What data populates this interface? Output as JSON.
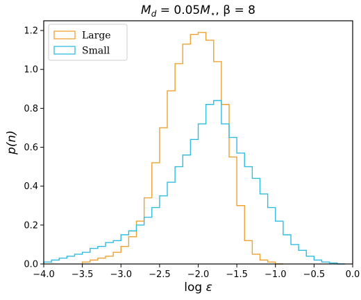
{
  "chart_data": {
    "type": "histogram-step",
    "title": "M_d = 0.05M_⋆, β = 8",
    "title_parts": {
      "m": "M",
      "d": "d",
      "mid": " = 0.05",
      "m2": "M",
      "star": "⋆",
      "rest": ", β = 8"
    },
    "xlabel": "log ε",
    "ylabel": "p(n)",
    "xlim": [
      -4.0,
      0.0
    ],
    "ylim": [
      0.0,
      1.25
    ],
    "xticks": [
      -4.0,
      -3.5,
      -3.0,
      -2.5,
      -2.0,
      -1.5,
      -1.0,
      -0.5,
      0.0
    ],
    "xtick_labels": [
      "−4.0",
      "−3.5",
      "−3.0",
      "−2.5",
      "−2.0",
      "−1.5",
      "−1.0",
      "−0.5",
      "0.0"
    ],
    "yticks": [
      0.0,
      0.2,
      0.4,
      0.6,
      0.8,
      1.0,
      1.2
    ],
    "ytick_labels": [
      "0.0",
      "0.2",
      "0.4",
      "0.6",
      "0.8",
      "1.0",
      "1.2"
    ],
    "legend_position": "top-left",
    "bin_width": 0.1,
    "series": [
      {
        "name": "Large",
        "color": "#f0a030",
        "x": [
          -3.5,
          -3.4,
          -3.3,
          -3.2,
          -3.1,
          -3.0,
          -2.9,
          -2.8,
          -2.7,
          -2.6,
          -2.5,
          -2.4,
          -2.3,
          -2.2,
          -2.1,
          -2.0,
          -1.9,
          -1.8,
          -1.7,
          -1.6,
          -1.5,
          -1.4,
          -1.3,
          -1.2,
          -1.1,
          -1.0
        ],
        "values": [
          0.01,
          0.02,
          0.03,
          0.04,
          0.06,
          0.09,
          0.14,
          0.22,
          0.34,
          0.52,
          0.7,
          0.89,
          1.03,
          1.13,
          1.18,
          1.19,
          1.15,
          1.04,
          0.82,
          0.55,
          0.3,
          0.12,
          0.05,
          0.02,
          0.01,
          0.0
        ]
      },
      {
        "name": "Small",
        "color": "#30bce0",
        "x": [
          -4.0,
          -3.9,
          -3.8,
          -3.7,
          -3.6,
          -3.5,
          -3.4,
          -3.3,
          -3.2,
          -3.1,
          -3.0,
          -2.9,
          -2.8,
          -2.7,
          -2.6,
          -2.5,
          -2.4,
          -2.3,
          -2.2,
          -2.1,
          -2.0,
          -1.9,
          -1.8,
          -1.7,
          -1.6,
          -1.5,
          -1.4,
          -1.3,
          -1.2,
          -1.1,
          -1.0,
          -0.9,
          -0.8,
          -0.7,
          -0.6,
          -0.5,
          -0.4,
          -0.3,
          -0.2
        ],
        "values": [
          0.01,
          0.02,
          0.03,
          0.04,
          0.05,
          0.06,
          0.08,
          0.09,
          0.11,
          0.12,
          0.15,
          0.17,
          0.2,
          0.24,
          0.29,
          0.35,
          0.42,
          0.5,
          0.56,
          0.64,
          0.72,
          0.82,
          0.84,
          0.72,
          0.65,
          0.57,
          0.5,
          0.44,
          0.36,
          0.29,
          0.22,
          0.15,
          0.1,
          0.07,
          0.04,
          0.02,
          0.01,
          0.005,
          0.0
        ]
      }
    ]
  }
}
